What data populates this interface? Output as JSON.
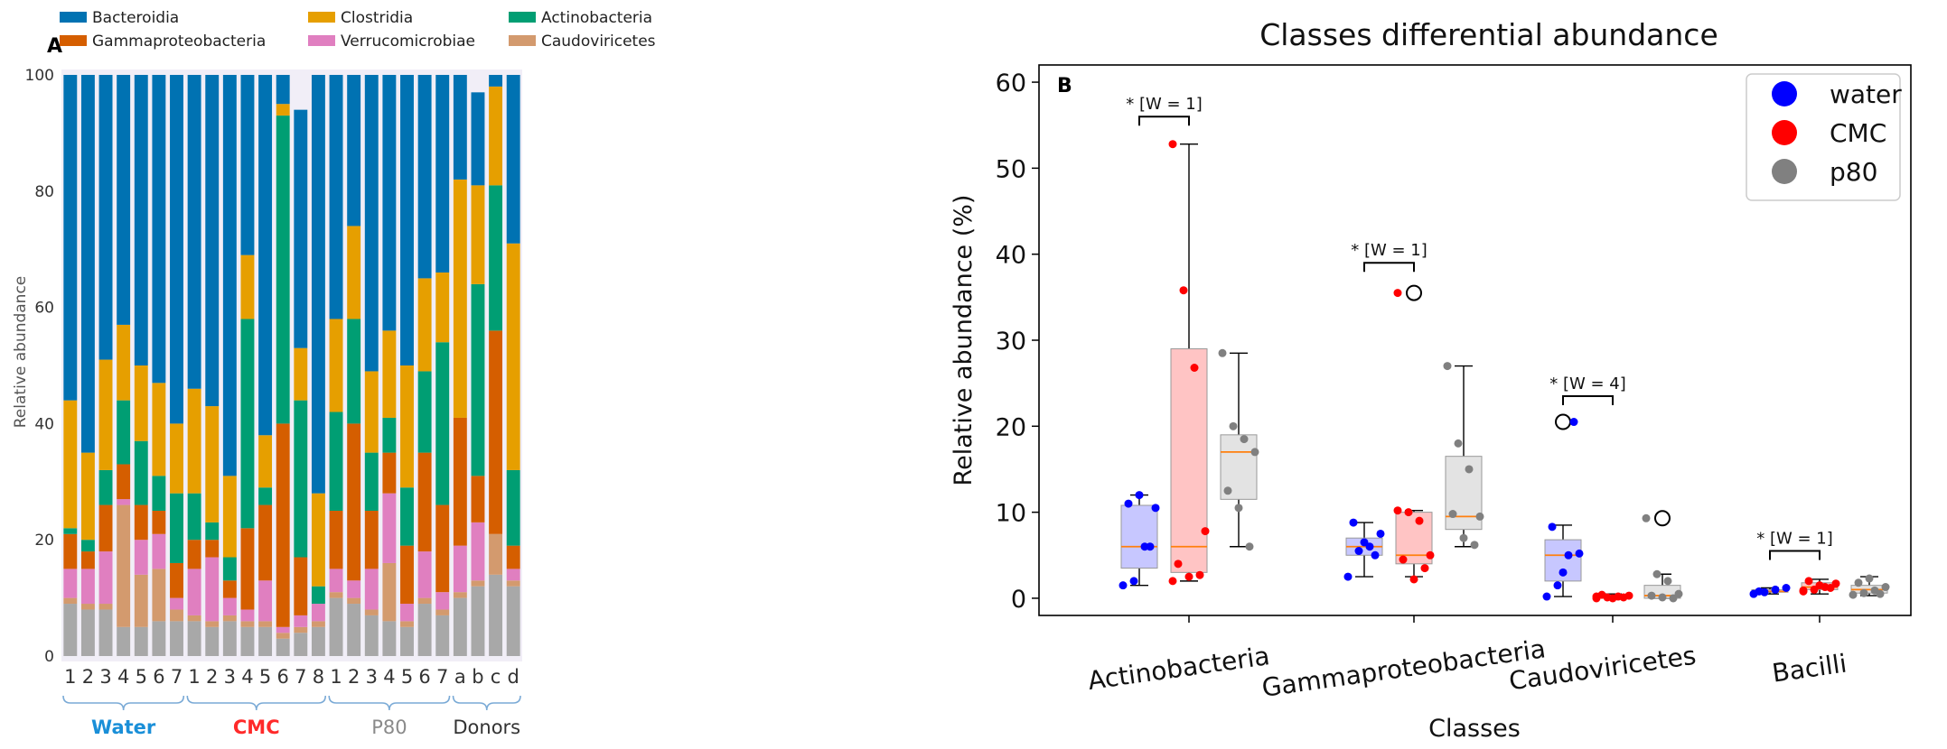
{
  "chart_data": [
    {
      "type": "bar",
      "stacked": true,
      "panel_label": "A",
      "title": "",
      "ylabel": "Relative abundance",
      "ylim": [
        0,
        100
      ],
      "yticks": [
        0,
        20,
        40,
        60,
        80,
        100
      ],
      "legend": [
        "Bacteroidia",
        "Gammaproteobacteria",
        "Clostridia",
        "Verrucomicrobiae",
        "Actinobacteria",
        "Caudoviricetes"
      ],
      "colors": {
        "Bacteroidia": "#0072b2",
        "Gammaproteobacteria": "#d55e00",
        "Clostridia": "#e69f00",
        "Verrucomicrobiae": "#e07fc0",
        "Actinobacteria": "#009e73",
        "Caudoviricetes": "#d39a6e",
        "Other": "#a8a8a8"
      },
      "groups": [
        {
          "name": "Water",
          "color": "#1a8fd8",
          "categories": [
            "1",
            "2",
            "3",
            "4",
            "5",
            "6",
            "7"
          ]
        },
        {
          "name": "CMC",
          "color": "#ff2a2a",
          "categories": [
            "1",
            "2",
            "3",
            "4",
            "5",
            "6",
            "7",
            "8"
          ]
        },
        {
          "name": "P80",
          "color": "#8a8a8a",
          "categories": [
            "1",
            "2",
            "3",
            "4",
            "5",
            "6",
            "7"
          ]
        },
        {
          "name": "Donors",
          "color": "#333333",
          "categories": [
            "a",
            "b",
            "c",
            "d"
          ]
        }
      ],
      "series": [
        {
          "name": "Other",
          "values": [
            9,
            8,
            8,
            5,
            5,
            6,
            6,
            6,
            5,
            6,
            5,
            5,
            3,
            4,
            5,
            10,
            9,
            7,
            6,
            5,
            9,
            7,
            10,
            12,
            14,
            12
          ]
        },
        {
          "name": "Caudoviricetes",
          "values": [
            1,
            1,
            1,
            21,
            9,
            9,
            2,
            1,
            1,
            1,
            1,
            1,
            1,
            1,
            1,
            1,
            1,
            1,
            10,
            1,
            1,
            1,
            1,
            1,
            7,
            1
          ]
        },
        {
          "name": "Verrucomicrobiae",
          "values": [
            5,
            6,
            9,
            1,
            6,
            6,
            2,
            8,
            11,
            3,
            2,
            7,
            1,
            2,
            3,
            4,
            3,
            7,
            12,
            3,
            8,
            3,
            8,
            10,
            0,
            2
          ]
        },
        {
          "name": "Gammaproteobacteria",
          "values": [
            6,
            3,
            8,
            6,
            6,
            4,
            6,
            5,
            3,
            3,
            14,
            13,
            35,
            10,
            0,
            10,
            27,
            10,
            7,
            10,
            17,
            15,
            22,
            8,
            35,
            4
          ]
        },
        {
          "name": "Actinobacteria",
          "values": [
            1,
            2,
            6,
            11,
            11,
            6,
            12,
            8,
            3,
            4,
            36,
            3,
            53,
            27,
            3,
            17,
            18,
            10,
            6,
            10,
            14,
            28,
            0,
            33,
            25,
            13
          ]
        },
        {
          "name": "Clostridia",
          "values": [
            22,
            15,
            19,
            13,
            13,
            16,
            12,
            18,
            20,
            14,
            11,
            9,
            2,
            9,
            16,
            16,
            16,
            14,
            15,
            21,
            16,
            12,
            41,
            17,
            17,
            39
          ]
        },
        {
          "name": "Bacteroidia",
          "values": [
            56,
            65,
            49,
            43,
            50,
            53,
            60,
            54,
            57,
            69,
            31,
            62,
            5,
            41,
            72,
            42,
            26,
            51,
            44,
            50,
            35,
            34,
            18,
            16,
            2,
            29
          ]
        }
      ]
    },
    {
      "type": "box",
      "panel_label": "B",
      "title": "Classes differential abundance",
      "xlabel": "Classes",
      "ylabel": "Relative abundance (%)",
      "ylim": [
        -2,
        62
      ],
      "yticks": [
        0,
        10,
        20,
        30,
        40,
        50,
        60
      ],
      "categories": [
        "Actinobacteria",
        "Gammaproteobacteria",
        "Caudoviricetes",
        "Bacilli"
      ],
      "legend": [
        "water",
        "CMC",
        "p80"
      ],
      "colors": {
        "water": "#0000ff",
        "CMC": "#ff0000",
        "p80": "#808080",
        "median": "#ff7f0e"
      },
      "series": [
        {
          "name": "water",
          "boxes": [
            {
              "min": 1.5,
              "q1": 3.5,
              "median": 6.0,
              "q3": 10.8,
              "max": 12.0,
              "points": [
                1.5,
                2.0,
                6.0,
                10.5,
                11.0,
                12.0,
                6.0
              ]
            },
            {
              "min": 2.5,
              "q1": 5.0,
              "median": 6.0,
              "q3": 7.0,
              "max": 8.8,
              "points": [
                2.5,
                5.5,
                6.0,
                7.5,
                8.8,
                6.5,
                5.0
              ]
            },
            {
              "min": 0.2,
              "q1": 2.0,
              "median": 5.0,
              "q3": 6.8,
              "max": 8.5,
              "points": [
                0.2,
                1.5,
                5.0,
                5.2,
                8.3,
                3.0,
                20.5
              ],
              "outliers": [
                20.5
              ]
            },
            {
              "min": 0.5,
              "q1": 0.7,
              "median": 0.8,
              "q3": 1.0,
              "max": 1.2,
              "points": [
                0.5,
                0.7,
                1.0,
                1.2,
                0.8
              ]
            }
          ]
        },
        {
          "name": "CMC",
          "boxes": [
            {
              "min": 2.0,
              "q1": 3.0,
              "median": 6.0,
              "q3": 29.0,
              "max": 52.8,
              "points": [
                52.8,
                35.8,
                26.8,
                7.8,
                4.0,
                2.5,
                2.7,
                2.0
              ]
            },
            {
              "min": 2.5,
              "q1": 4.0,
              "median": 5.0,
              "q3": 10.0,
              "max": 10.2,
              "points": [
                35.5,
                10.0,
                9.0,
                5.0,
                4.5,
                2.2,
                3.5,
                10.2
              ],
              "outliers": [
                35.5
              ]
            },
            {
              "min": 0.0,
              "q1": 0.0,
              "median": 0.1,
              "q3": 0.3,
              "max": 0.5,
              "points": [
                0.0,
                0.1,
                0.2,
                0.3,
                0.4,
                0.0,
                0.1,
                0.2
              ]
            },
            {
              "min": 0.5,
              "q1": 1.0,
              "median": 1.3,
              "q3": 1.8,
              "max": 2.2,
              "points": [
                0.8,
                1.0,
                1.3,
                1.7,
                2.0,
                1.5,
                1.2,
                0.9
              ]
            }
          ]
        },
        {
          "name": "p80",
          "boxes": [
            {
              "min": 6.0,
              "q1": 11.5,
              "median": 17.0,
              "q3": 19.0,
              "max": 28.5,
              "points": [
                28.5,
                20.0,
                18.5,
                17.0,
                12.5,
                10.5,
                6.0
              ]
            },
            {
              "min": 6.0,
              "q1": 8.0,
              "median": 9.5,
              "q3": 16.5,
              "max": 27.0,
              "points": [
                27.0,
                18.0,
                15.0,
                9.5,
                9.8,
                7.0,
                6.2
              ]
            },
            {
              "min": 0.0,
              "q1": 0.0,
              "median": 0.3,
              "q3": 1.5,
              "max": 2.8,
              "points": [
                9.3,
                2.8,
                2.0,
                0.5,
                0.3,
                0.1,
                0.0
              ],
              "outliers": [
                9.3
              ]
            },
            {
              "min": 0.3,
              "q1": 0.6,
              "median": 1.0,
              "q3": 1.5,
              "max": 2.5,
              "points": [
                0.4,
                0.6,
                0.9,
                1.3,
                1.8,
                2.3,
                0.5
              ]
            }
          ]
        }
      ],
      "annotations": [
        {
          "category": "Actinobacteria",
          "text": "* [W = 1]",
          "y": 56
        },
        {
          "category": "Gammaproteobacteria",
          "text": "* [W = 1]",
          "y": 39
        },
        {
          "category": "Caudoviricetes",
          "text": "* [W = 4]",
          "y": 23.5
        },
        {
          "category": "Bacilli",
          "text": "* [W = 1]",
          "y": 5.5
        }
      ]
    }
  ]
}
